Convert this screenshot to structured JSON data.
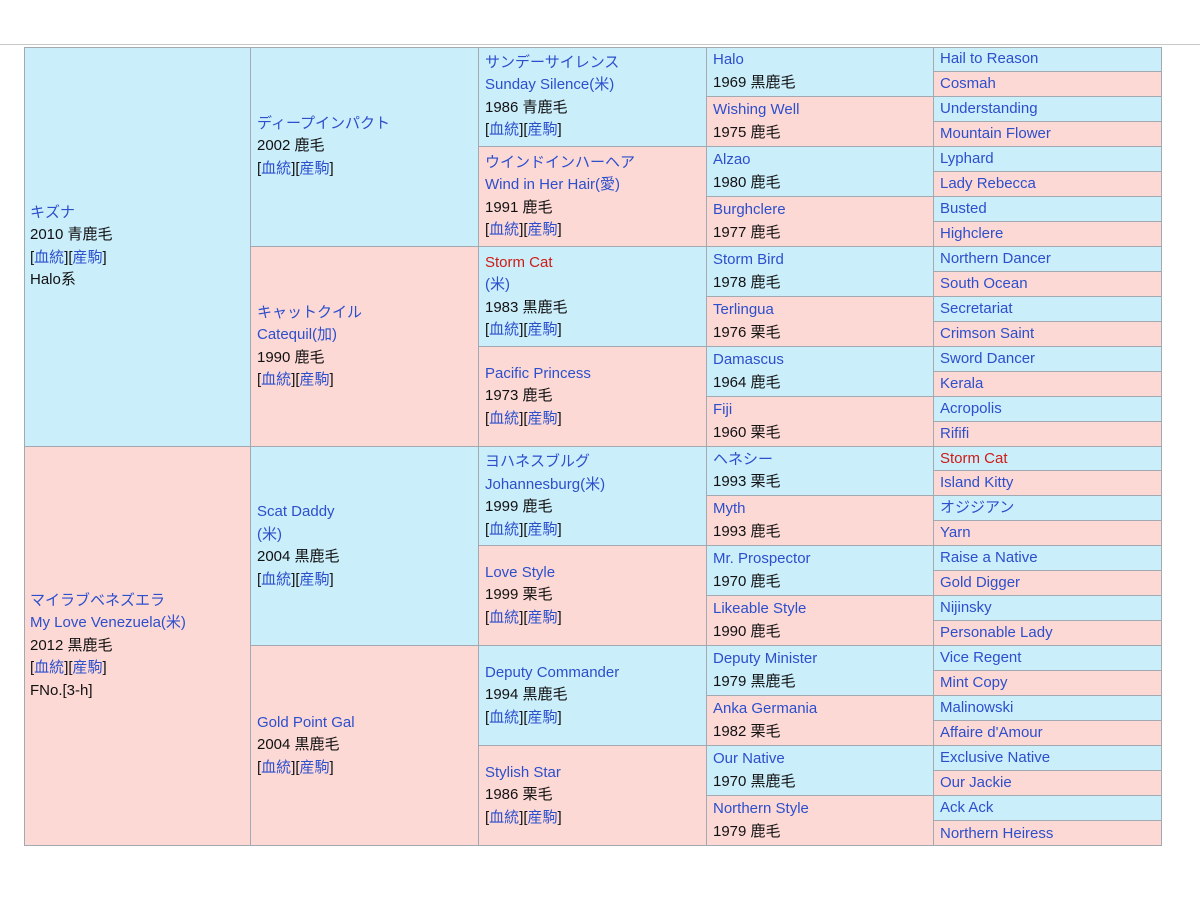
{
  "pedigree": {
    "gen1": [
      {
        "name": "キズナ",
        "year_color": "2010 青鹿毛",
        "links": [
          "血統",
          "産駒"
        ],
        "lineage": "Halo系"
      },
      {
        "name": "マイラブベネズエラ",
        "name_en": "My Love Venezuela(米)",
        "year_color": "2012 黒鹿毛",
        "links": [
          "血統",
          "産駒"
        ],
        "family_no": "FNo.[3-h]"
      }
    ],
    "gen2": [
      {
        "name": "ディープインパクト",
        "year_color": "2002 鹿毛",
        "links": [
          "血統",
          "産駒"
        ]
      },
      {
        "name": "キャットクイル",
        "name_en": "Catequil(加)",
        "year_color": "1990 鹿毛",
        "links": [
          "血統",
          "産駒"
        ]
      },
      {
        "name": "Scat Daddy",
        "name_en": "(米)",
        "year_color": "2004 黒鹿毛",
        "links": [
          "血統",
          "産駒"
        ]
      },
      {
        "name": "Gold Point Gal",
        "year_color": "2004 黒鹿毛",
        "links": [
          "血統",
          "産駒"
        ]
      }
    ],
    "gen3": [
      {
        "name": "サンデーサイレンス",
        "name_en": "Sunday Silence(米)",
        "year_color": "1986 青鹿毛",
        "links": [
          "血統",
          "産駒"
        ]
      },
      {
        "name": "ウインドインハーヘア",
        "name_en": "Wind in Her Hair(愛)",
        "year_color": "1991 鹿毛",
        "links": [
          "血統",
          "産駒"
        ]
      },
      {
        "name": "Storm Cat",
        "name_en": "(米)",
        "year_color": "1983 黒鹿毛",
        "links": [
          "血統",
          "産駒"
        ]
      },
      {
        "name": "Pacific Princess",
        "year_color": "1973 鹿毛",
        "links": [
          "血統",
          "産駒"
        ]
      },
      {
        "name": "ヨハネスブルグ",
        "name_en": "Johannesburg(米)",
        "year_color": "1999 鹿毛",
        "links": [
          "血統",
          "産駒"
        ]
      },
      {
        "name": "Love Style",
        "year_color": "1999 栗毛",
        "links": [
          "血統",
          "産駒"
        ]
      },
      {
        "name": "Deputy Commander",
        "year_color": "1994 黒鹿毛",
        "links": [
          "血統",
          "産駒"
        ]
      },
      {
        "name": "Stylish Star",
        "year_color": "1986 栗毛",
        "links": [
          "血統",
          "産駒"
        ]
      }
    ],
    "gen4": [
      {
        "name": "Halo",
        "year_color": "1969 黒鹿毛"
      },
      {
        "name": "Wishing Well",
        "year_color": "1975 鹿毛"
      },
      {
        "name": "Alzao",
        "year_color": "1980 鹿毛"
      },
      {
        "name": "Burghclere",
        "year_color": "1977 鹿毛"
      },
      {
        "name": "Storm Bird",
        "year_color": "1978 鹿毛"
      },
      {
        "name": "Terlingua",
        "year_color": "1976 栗毛"
      },
      {
        "name": "Damascus",
        "year_color": "1964 鹿毛"
      },
      {
        "name": "Fiji",
        "year_color": "1960 栗毛"
      },
      {
        "name": "ヘネシー",
        "year_color": "1993 栗毛"
      },
      {
        "name": "Myth",
        "year_color": "1993 鹿毛"
      },
      {
        "name": "Mr. Prospector",
        "year_color": "1970 鹿毛"
      },
      {
        "name": "Likeable Style",
        "year_color": "1990 鹿毛"
      },
      {
        "name": "Deputy Minister",
        "year_color": "1979 黒鹿毛"
      },
      {
        "name": "Anka Germania",
        "year_color": "1982 栗毛"
      },
      {
        "name": "Our Native",
        "year_color": "1970 黒鹿毛"
      },
      {
        "name": "Northern Style",
        "year_color": "1979 鹿毛"
      }
    ],
    "gen5": [
      {
        "name": "Hail to Reason"
      },
      {
        "name": "Cosmah"
      },
      {
        "name": "Understanding"
      },
      {
        "name": "Mountain Flower"
      },
      {
        "name": "Lyphard"
      },
      {
        "name": "Lady Rebecca"
      },
      {
        "name": "Busted"
      },
      {
        "name": "Highclere"
      },
      {
        "name": "Northern Dancer"
      },
      {
        "name": "South Ocean"
      },
      {
        "name": "Secretariat"
      },
      {
        "name": "Crimson Saint"
      },
      {
        "name": "Sword Dancer"
      },
      {
        "name": "Kerala"
      },
      {
        "name": "Acropolis"
      },
      {
        "name": "Rififi"
      },
      {
        "name": "Storm Cat"
      },
      {
        "name": "Island Kitty"
      },
      {
        "name": "オジジアン"
      },
      {
        "name": "Yarn"
      },
      {
        "name": "Raise a Native"
      },
      {
        "name": "Gold Digger"
      },
      {
        "name": "Nijinsky"
      },
      {
        "name": "Personable Lady"
      },
      {
        "name": "Vice Regent"
      },
      {
        "name": "Mint Copy"
      },
      {
        "name": "Malinowski"
      },
      {
        "name": "Affaire d'Amour"
      },
      {
        "name": "Exclusive Native"
      },
      {
        "name": "Our Jackie"
      },
      {
        "name": "Ack Ack"
      },
      {
        "name": "Northern Heiress"
      }
    ]
  },
  "colors": {
    "male_bg": "#cbeefb",
    "female_bg": "#fdd9d6",
    "link": "#2c4fcc",
    "inbreed_highlight": "#cf1c16",
    "border": "#a2a9b1"
  }
}
